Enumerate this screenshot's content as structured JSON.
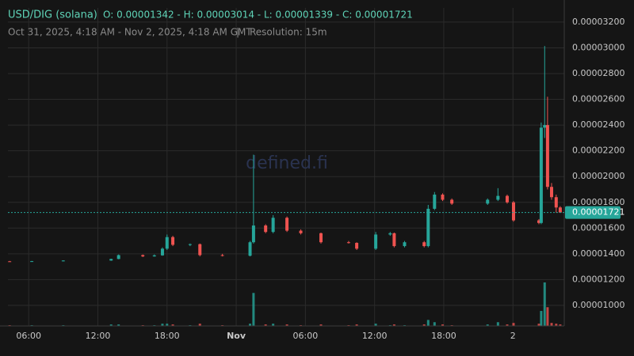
{
  "header": {
    "symbol": "USD/DIG (solana)",
    "ohlc_text": "O: 0.00001342 - H: 0.00003014 - L: 0.00001339 - C: 0.00001721",
    "range_text": "Oct 31, 2025, 4:18 AM - Nov 2, 2025, 4:18 AM GMT",
    "separator": "|",
    "resolution": "Resolution: 15m",
    "watermark": "defined.fi"
  },
  "chart_data": {
    "type": "candlestick",
    "x": [
      4.35,
      6.27,
      9.0,
      13.15,
      13.8,
      15.9,
      16.9,
      17.6,
      18.0,
      18.5,
      20.0,
      20.85,
      22.8,
      25.2,
      25.5,
      26.55,
      27.2,
      28.4,
      29.6,
      31.35,
      33.75,
      34.45,
      36.1,
      37.35,
      37.7,
      38.6,
      40.3,
      40.65,
      41.2,
      41.9,
      42.7,
      45.8,
      46.7,
      47.5,
      48.05,
      50.25,
      50.45,
      50.75,
      51.0,
      51.35,
      51.75,
      52.1
    ],
    "open": [
      1.342e-05,
      1.34e-05,
      1.343e-05,
      1.348e-05,
      1.36e-05,
      1.39e-05,
      1.38e-05,
      1.388e-05,
      1.44e-05,
      1.53e-05,
      1.47e-05,
      1.475e-05,
      1.39e-05,
      1.385e-05,
      1.49e-05,
      1.62e-05,
      1.57e-05,
      1.68e-05,
      1.58e-05,
      1.56e-05,
      1.49e-05,
      1.485e-05,
      1.44e-05,
      1.55e-05,
      1.56e-05,
      1.46e-05,
      1.49e-05,
      1.46e-05,
      1.75e-05,
      1.86e-05,
      1.82e-05,
      1.79e-05,
      1.82e-05,
      1.85e-05,
      1.8e-05,
      1.66e-05,
      1.64e-05,
      2.38e-05,
      2.4e-05,
      1.92e-05,
      1.84e-05,
      1.76e-05
    ],
    "high": [
      1.345e-05,
      1.345e-05,
      1.35e-05,
      1.362e-05,
      1.395e-05,
      1.395e-05,
      1.395e-05,
      1.45e-05,
      1.55e-05,
      1.54e-05,
      1.48e-05,
      1.48e-05,
      1.4e-05,
      1.5e-05,
      2.17e-05,
      1.63e-05,
      1.7e-05,
      1.69e-05,
      1.59e-05,
      1.565e-05,
      1.5e-05,
      1.49e-05,
      1.57e-05,
      1.57e-05,
      1.565e-05,
      1.5e-05,
      1.5e-05,
      1.78e-05,
      1.88e-05,
      1.87e-05,
      1.83e-05,
      1.83e-05,
      1.91e-05,
      1.86e-05,
      1.81e-05,
      1.67e-05,
      2.42e-05,
      3.014e-05,
      2.62e-05,
      1.95e-05,
      1.86e-05,
      1.77e-05
    ],
    "low": [
      1.338e-05,
      1.339e-05,
      1.341e-05,
      1.346e-05,
      1.358e-05,
      1.375e-05,
      1.378e-05,
      1.385e-05,
      1.43e-05,
      1.46e-05,
      1.46e-05,
      1.38e-05,
      1.38e-05,
      1.38e-05,
      1.48e-05,
      1.56e-05,
      1.56e-05,
      1.57e-05,
      1.55e-05,
      1.48e-05,
      1.48e-05,
      1.43e-05,
      1.43e-05,
      1.54e-05,
      1.45e-05,
      1.45e-05,
      1.45e-05,
      1.45e-05,
      1.74e-05,
      1.81e-05,
      1.78e-05,
      1.78e-05,
      1.81e-05,
      1.79e-05,
      1.65e-05,
      1.63e-05,
      1.63e-05,
      2.3e-05,
      1.9e-05,
      1.82e-05,
      1.72e-05,
      1.72e-05
    ],
    "close": [
      1.34e-05,
      1.343e-05,
      1.348e-05,
      1.36e-05,
      1.39e-05,
      1.38e-05,
      1.388e-05,
      1.44e-05,
      1.53e-05,
      1.47e-05,
      1.475e-05,
      1.39e-05,
      1.385e-05,
      1.49e-05,
      1.62e-05,
      1.57e-05,
      1.68e-05,
      1.58e-05,
      1.56e-05,
      1.49e-05,
      1.485e-05,
      1.44e-05,
      1.55e-05,
      1.56e-05,
      1.46e-05,
      1.49e-05,
      1.46e-05,
      1.75e-05,
      1.86e-05,
      1.82e-05,
      1.79e-05,
      1.82e-05,
      1.85e-05,
      1.8e-05,
      1.66e-05,
      1.64e-05,
      2.38e-05,
      2.4e-05,
      1.92e-05,
      1.84e-05,
      1.76e-05,
      1.721e-05
    ],
    "volume": [
      1,
      1,
      1,
      2,
      2,
      1,
      1,
      3,
      3,
      2,
      1,
      3,
      1,
      3,
      44,
      2,
      3,
      2,
      1,
      2,
      1,
      2,
      3,
      1,
      2,
      1,
      2,
      8,
      5,
      2,
      1,
      2,
      5,
      2,
      4,
      3,
      20,
      58,
      25,
      4,
      3,
      2
    ],
    "up_color": "#26a69a",
    "down_color": "#ef5350",
    "xlim": [
      4.2,
      52.45
    ],
    "xticks": [
      {
        "value": 6,
        "label": "06:00"
      },
      {
        "value": 12,
        "label": "12:00"
      },
      {
        "value": 18,
        "label": "18:00"
      },
      {
        "value": 24,
        "label": "Nov"
      },
      {
        "value": 30,
        "label": "06:00"
      },
      {
        "value": 36,
        "label": "12:00"
      },
      {
        "value": 42,
        "label": "18:00"
      },
      {
        "value": 48,
        "label": "2"
      }
    ],
    "ylim": [
      8.4e-06,
      3.31e-05
    ],
    "yticks": [
      {
        "value": 1e-05,
        "label": "0.00001000"
      },
      {
        "value": 1.2e-05,
        "label": "0.00001200"
      },
      {
        "value": 1.4e-05,
        "label": "0.00001400"
      },
      {
        "value": 1.6e-05,
        "label": "0.00001600"
      },
      {
        "value": 1.8e-05,
        "label": "0.00001800"
      },
      {
        "value": 2e-05,
        "label": "0.00002000"
      },
      {
        "value": 2.2e-05,
        "label": "0.00002200"
      },
      {
        "value": 2.4e-05,
        "label": "0.00002400"
      },
      {
        "value": 2.6e-05,
        "label": "0.00002600"
      },
      {
        "value": 2.8e-05,
        "label": "0.00002800"
      },
      {
        "value": 3e-05,
        "label": "0.00003000"
      },
      {
        "value": 3.2e-05,
        "label": "0.00003200"
      }
    ],
    "last_price": {
      "value": 1.721e-05,
      "label": "0.00001721"
    },
    "grid": true
  }
}
